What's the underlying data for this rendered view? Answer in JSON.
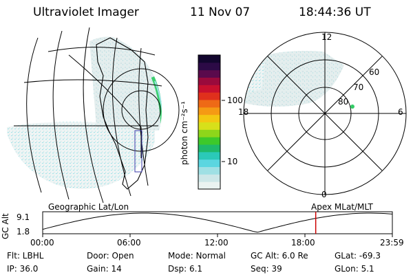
{
  "header": {
    "instrument": "Ultraviolet Imager",
    "date": "11 Nov 07",
    "time": "18:44:36 UT"
  },
  "colorbar": {
    "unit_label": "photon cm⁻²s⁻¹",
    "ticks": [
      {
        "label": "100",
        "value": 100
      },
      {
        "label": "10",
        "value": 10
      }
    ],
    "colors": [
      "#eaf3f1",
      "#cde7e8",
      "#9fe0e4",
      "#5bd6e0",
      "#2bc9b8",
      "#1fb96a",
      "#3dc92a",
      "#8ed61a",
      "#d7e01a",
      "#f3c812",
      "#f59a14",
      "#ee6a16",
      "#e0301c",
      "#c8102e",
      "#9a0a3c",
      "#5a0a4c",
      "#2c0a46",
      "#12062e"
    ]
  },
  "geo_panel": {
    "label": "Geographic Lat/Lon"
  },
  "apex_panel": {
    "label": "Apex  MLat/MLT",
    "mlt_labels": {
      "top": "12",
      "bottom": "0",
      "left": "18",
      "right": "6"
    },
    "mlat_labels": [
      "60",
      "70",
      "80"
    ],
    "marker_color": "#33cc66"
  },
  "altitude_plot": {
    "ylabel": "GC Alt",
    "ymax_label": "9.1",
    "ymin_label": "1.8",
    "xticks": [
      "00:00",
      "06:00",
      "12:00",
      "18:00",
      "23:59"
    ],
    "current_time_hours": 18.74,
    "line_color": "#cc0000"
  },
  "footer": {
    "filter": "Flt: LBHL",
    "door": "Door: Open",
    "mode": "Mode: Normal",
    "gc_alt": "GC Alt: 6.0 Re",
    "glat": "GLat: -69.3",
    "ip": "IP: 36.0",
    "gain": "Gain: 14",
    "dsp": "Dsp:      6.1",
    "seq": "Seq: 39",
    "glon": "GLon:   5.1"
  }
}
